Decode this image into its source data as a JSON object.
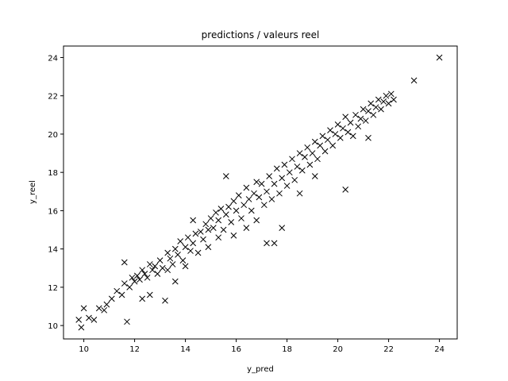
{
  "chart_data": {
    "type": "scatter",
    "title": "predictions / valeurs reel",
    "xlabel": "y_pred",
    "ylabel": "y_reel",
    "xlim": [
      9.2,
      24.7
    ],
    "ylim": [
      9.3,
      24.6
    ],
    "xticks": [
      10,
      12,
      14,
      16,
      18,
      20,
      22,
      24
    ],
    "yticks": [
      10,
      12,
      14,
      16,
      18,
      20,
      22,
      24
    ],
    "grid": false,
    "marker": "x",
    "color": "#000000",
    "points": [
      [
        9.9,
        9.9
      ],
      [
        9.8,
        10.3
      ],
      [
        10.0,
        10.9
      ],
      [
        10.2,
        10.4
      ],
      [
        10.4,
        10.3
      ],
      [
        10.6,
        10.9
      ],
      [
        10.8,
        10.8
      ],
      [
        10.9,
        11.1
      ],
      [
        11.1,
        11.4
      ],
      [
        11.3,
        11.8
      ],
      [
        11.5,
        11.6
      ],
      [
        11.6,
        12.2
      ],
      [
        11.6,
        13.3
      ],
      [
        11.7,
        10.2
      ],
      [
        11.8,
        12.0
      ],
      [
        11.9,
        12.5
      ],
      [
        12.0,
        12.3
      ],
      [
        12.1,
        12.6
      ],
      [
        12.2,
        12.4
      ],
      [
        12.3,
        12.9
      ],
      [
        12.3,
        11.4
      ],
      [
        12.4,
        12.7
      ],
      [
        12.5,
        12.5
      ],
      [
        12.6,
        13.2
      ],
      [
        12.6,
        11.6
      ],
      [
        12.7,
        12.9
      ],
      [
        12.8,
        13.1
      ],
      [
        12.9,
        12.7
      ],
      [
        13.0,
        13.4
      ],
      [
        13.1,
        13.0
      ],
      [
        13.2,
        11.3
      ],
      [
        13.3,
        13.8
      ],
      [
        13.3,
        12.9
      ],
      [
        13.4,
        13.5
      ],
      [
        13.5,
        13.2
      ],
      [
        13.6,
        14.0
      ],
      [
        13.6,
        12.3
      ],
      [
        13.7,
        13.7
      ],
      [
        13.8,
        14.4
      ],
      [
        13.9,
        13.4
      ],
      [
        14.0,
        14.1
      ],
      [
        14.0,
        13.1
      ],
      [
        14.1,
        14.6
      ],
      [
        14.2,
        13.9
      ],
      [
        14.3,
        14.3
      ],
      [
        14.3,
        15.5
      ],
      [
        14.4,
        14.8
      ],
      [
        14.5,
        13.8
      ],
      [
        14.6,
        14.9
      ],
      [
        14.7,
        14.5
      ],
      [
        14.8,
        15.3
      ],
      [
        14.9,
        15.0
      ],
      [
        14.9,
        14.1
      ],
      [
        15.0,
        15.6
      ],
      [
        15.1,
        15.1
      ],
      [
        15.2,
        15.9
      ],
      [
        15.3,
        14.6
      ],
      [
        15.3,
        15.5
      ],
      [
        15.4,
        16.1
      ],
      [
        15.5,
        15.0
      ],
      [
        15.6,
        15.8
      ],
      [
        15.6,
        17.8
      ],
      [
        15.7,
        16.2
      ],
      [
        15.8,
        15.4
      ],
      [
        15.9,
        16.5
      ],
      [
        15.9,
        14.7
      ],
      [
        16.0,
        16.0
      ],
      [
        16.1,
        16.8
      ],
      [
        16.2,
        15.6
      ],
      [
        16.3,
        16.3
      ],
      [
        16.4,
        17.2
      ],
      [
        16.4,
        15.1
      ],
      [
        16.5,
        16.6
      ],
      [
        16.6,
        16.0
      ],
      [
        16.7,
        16.9
      ],
      [
        16.8,
        17.5
      ],
      [
        16.8,
        15.5
      ],
      [
        16.9,
        16.7
      ],
      [
        17.0,
        17.4
      ],
      [
        17.1,
        16.3
      ],
      [
        17.2,
        17.0
      ],
      [
        17.2,
        14.3
      ],
      [
        17.3,
        17.8
      ],
      [
        17.4,
        16.6
      ],
      [
        17.5,
        17.4
      ],
      [
        17.5,
        14.3
      ],
      [
        17.6,
        18.2
      ],
      [
        17.7,
        16.9
      ],
      [
        17.8,
        17.7
      ],
      [
        17.8,
        15.1
      ],
      [
        17.9,
        18.4
      ],
      [
        18.0,
        17.3
      ],
      [
        18.1,
        18.0
      ],
      [
        18.2,
        18.7
      ],
      [
        18.3,
        17.6
      ],
      [
        18.4,
        18.3
      ],
      [
        18.5,
        19.0
      ],
      [
        18.5,
        16.9
      ],
      [
        18.6,
        18.1
      ],
      [
        18.7,
        18.8
      ],
      [
        18.8,
        19.3
      ],
      [
        18.9,
        18.4
      ],
      [
        19.0,
        19.0
      ],
      [
        19.1,
        19.6
      ],
      [
        19.1,
        17.8
      ],
      [
        19.2,
        18.7
      ],
      [
        19.3,
        19.4
      ],
      [
        19.4,
        19.9
      ],
      [
        19.5,
        19.1
      ],
      [
        19.6,
        19.7
      ],
      [
        19.7,
        20.2
      ],
      [
        19.8,
        19.4
      ],
      [
        19.9,
        20.0
      ],
      [
        20.0,
        20.5
      ],
      [
        20.1,
        19.8
      ],
      [
        20.2,
        20.3
      ],
      [
        20.3,
        17.1
      ],
      [
        20.3,
        20.9
      ],
      [
        20.4,
        20.1
      ],
      [
        20.5,
        20.6
      ],
      [
        20.6,
        19.9
      ],
      [
        20.7,
        21.0
      ],
      [
        20.8,
        20.4
      ],
      [
        20.9,
        20.8
      ],
      [
        21.0,
        21.3
      ],
      [
        21.1,
        20.7
      ],
      [
        21.2,
        19.8
      ],
      [
        21.2,
        21.2
      ],
      [
        21.3,
        21.6
      ],
      [
        21.4,
        21.0
      ],
      [
        21.5,
        21.4
      ],
      [
        21.6,
        21.8
      ],
      [
        21.7,
        21.3
      ],
      [
        21.8,
        21.7
      ],
      [
        21.9,
        22.0
      ],
      [
        22.0,
        21.6
      ],
      [
        22.1,
        22.1
      ],
      [
        22.2,
        21.8
      ],
      [
        23.0,
        22.8
      ],
      [
        24.0,
        24.0
      ]
    ]
  }
}
